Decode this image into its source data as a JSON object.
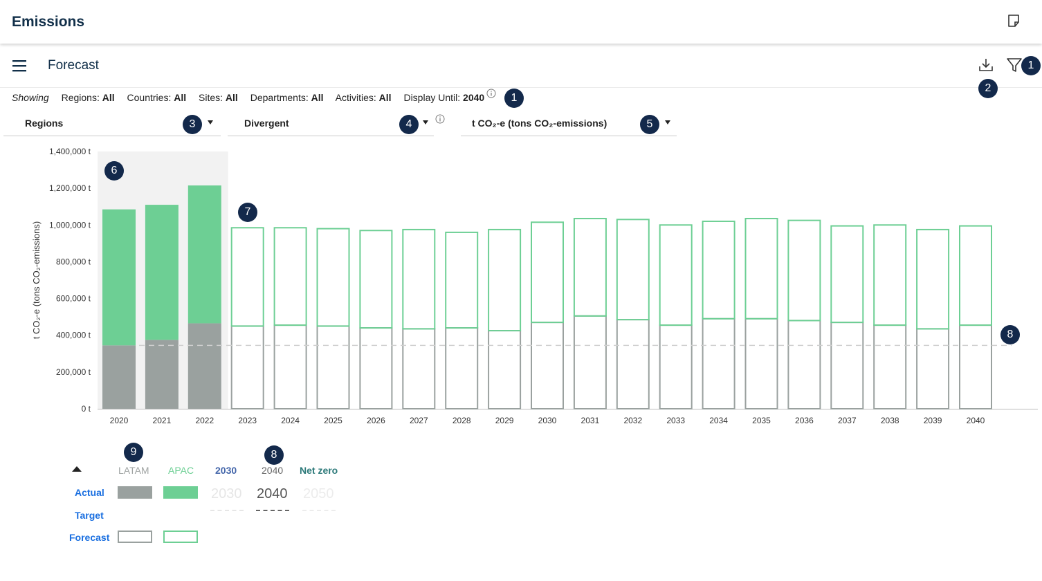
{
  "app": {
    "title": "Emissions"
  },
  "page": {
    "title": "Forecast"
  },
  "filters": {
    "showing_label": "Showing",
    "items": [
      {
        "label": "Regions:",
        "value": "All"
      },
      {
        "label": "Countries:",
        "value": "All"
      },
      {
        "label": "Sites:",
        "value": "All"
      },
      {
        "label": "Departments:",
        "value": "All"
      },
      {
        "label": "Activities:",
        "value": "All"
      },
      {
        "label": "Display Until:",
        "value": "2040"
      }
    ]
  },
  "selects": {
    "group_by": "Regions",
    "mode": "Divergent",
    "unit": "t CO₂-e (tons CO₂-emissions)"
  },
  "badges": {
    "b1": "1",
    "b2": "2",
    "b3": "3",
    "b4": "4",
    "b5": "5",
    "b6": "6",
    "b7": "7",
    "b8": "8",
    "b9": "9"
  },
  "icons": [
    "note-icon",
    "menu-icon",
    "download-icon",
    "filter-icon",
    "info-icon",
    "caret-down-icon",
    "caret-up-icon"
  ],
  "colors": {
    "latam": "#9aa19f",
    "apac": "#6dcf94",
    "actual_bg": "#f2f2f2",
    "badge": "#13294b",
    "link": "#1a6fe0",
    "target_2030": "#4466aa",
    "net_zero": "#2d7a7a"
  },
  "legend": {
    "headers": {
      "latam": "LATAM",
      "apac": "APAC",
      "y2030": "2030",
      "y2040": "2040",
      "net_zero": "Net zero"
    },
    "rows": {
      "actual": "Actual",
      "target": "Target",
      "forecast": "Forecast"
    },
    "targets": {
      "t2030": "2030",
      "t2040": "2040",
      "t2050": "2050"
    }
  },
  "chart_data": {
    "type": "bar",
    "stacked": true,
    "ylabel": "t CO₂-e (tons CO₂-emissions)",
    "ylim": [
      0,
      1400000
    ],
    "yticks": [
      "0 t",
      "200,000 t",
      "400,000 t",
      "600,000 t",
      "800,000 t",
      "1,000,000 t",
      "1,200,000 t",
      "1,400,000 t"
    ],
    "categories": [
      "2020",
      "2021",
      "2022",
      "2023",
      "2024",
      "2025",
      "2026",
      "2027",
      "2028",
      "2029",
      "2030",
      "2031",
      "2032",
      "2033",
      "2034",
      "2035",
      "2036",
      "2037",
      "2038",
      "2039",
      "2040"
    ],
    "actual_count": 3,
    "series": [
      {
        "name": "LATAM",
        "values": [
          345000,
          375000,
          465000,
          450000,
          455000,
          450000,
          440000,
          435000,
          440000,
          425000,
          470000,
          505000,
          485000,
          455000,
          490000,
          490000,
          480000,
          470000,
          455000,
          435000,
          455000
        ]
      },
      {
        "name": "APAC",
        "values": [
          740000,
          735000,
          750000,
          535000,
          530000,
          530000,
          530000,
          540000,
          520000,
          550000,
          545000,
          530000,
          545000,
          545000,
          530000,
          545000,
          545000,
          525000,
          545000,
          540000,
          540000
        ]
      }
    ],
    "target_line": 345000,
    "grid": false
  }
}
